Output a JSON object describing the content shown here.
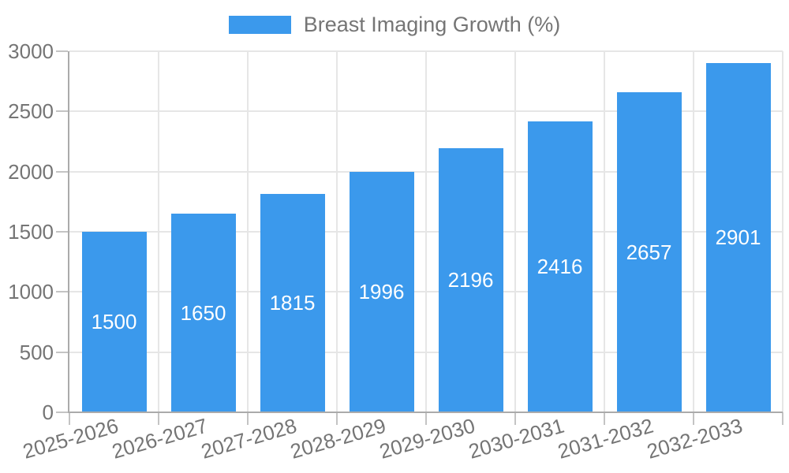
{
  "legend": {
    "label": "Breast Imaging Growth (%)"
  },
  "chart_data": {
    "type": "bar",
    "title": "",
    "series_name": "Breast Imaging Growth (%)",
    "categories": [
      "2025-2026",
      "2026-2027",
      "2027-2028",
      "2028-2029",
      "2029-2030",
      "2030-2031",
      "2031-2032",
      "2032-2033"
    ],
    "values": [
      1500,
      1650,
      1815,
      1996,
      2196,
      2416,
      2657,
      2901
    ],
    "xlabel": "",
    "ylabel": "",
    "ylim": [
      0,
      3000
    ],
    "yticks": [
      0,
      500,
      1000,
      1500,
      2000,
      2500,
      3000
    ],
    "grid": true,
    "legend_position": "top-center",
    "value_labels_position": "inside-center"
  },
  "colors": {
    "bar": "#3B99EC",
    "grid": "#E6E6E6",
    "axis": "#ABABAB",
    "tick": "#C4C4C4",
    "label_text": "#757575",
    "value_label_text": "#FFFFFF",
    "background": "#FFFFFF"
  }
}
